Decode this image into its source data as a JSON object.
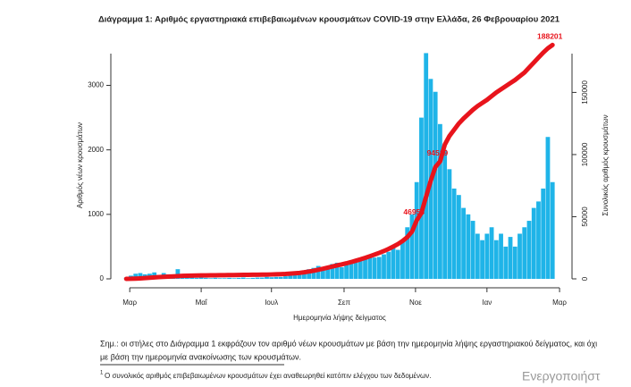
{
  "chart_data": {
    "type": "bar_line",
    "title": "Διάγραμμα 1: Αριθμός εργαστηριακά επιβεβαιωμένων κρουσμάτων COVID-19 στην Ελλάδα, 26 Φεβρουαρίου 2021",
    "y_label": "Αριθμός νέων κρουσμάτων",
    "y2_label": "Συνολικός αριθμός κρουσμάτων",
    "x_label": "Ημερομηνία λήψης δείγματος",
    "x": [
      2,
      6,
      10,
      14,
      18,
      22,
      26,
      30,
      34,
      38,
      42,
      46,
      50,
      54,
      58,
      62,
      66,
      70,
      74,
      78,
      82,
      86,
      90,
      94,
      98,
      102,
      106,
      110,
      114,
      118,
      122,
      126,
      130,
      134,
      138,
      142,
      146,
      150,
      154,
      158,
      162,
      166,
      170,
      174,
      178,
      182,
      186,
      190,
      194,
      198,
      202,
      206,
      210,
      214,
      218,
      222,
      226,
      230,
      234,
      238,
      242,
      246,
      250,
      254,
      258,
      262,
      266,
      270,
      274,
      278,
      282,
      286,
      290,
      294,
      298,
      302,
      306,
      310,
      314,
      318,
      322,
      326,
      330,
      334,
      338,
      342,
      346,
      350,
      354,
      358,
      362,
      366
    ],
    "xlim": [
      -2,
      375
    ],
    "xticks": [
      {
        "value": 5,
        "label": "Μαρ"
      },
      {
        "value": 66,
        "label": "Μαΐ"
      },
      {
        "value": 126,
        "label": "Ιουλ"
      },
      {
        "value": 188,
        "label": "Σεπ"
      },
      {
        "value": 249,
        "label": "Νοε"
      },
      {
        "value": 310,
        "label": "Ιαν"
      },
      {
        "value": 372,
        "label": "Μαρ"
      }
    ],
    "ylim": [
      0,
      3700
    ],
    "yticks": [
      0,
      1000,
      2000,
      3000
    ],
    "y2lim": [
      0,
      192000
    ],
    "y2ticks": [
      0,
      50000,
      100000,
      150000
    ],
    "series": [
      {
        "name": "Νέα κρούσματα",
        "color": "#1fb4e8",
        "values": [
          20,
          50,
          80,
          90,
          70,
          80,
          100,
          60,
          90,
          70,
          60,
          150,
          50,
          30,
          20,
          15,
          20,
          15,
          10,
          15,
          10,
          10,
          15,
          10,
          15,
          20,
          10,
          15,
          20,
          20,
          30,
          25,
          30,
          30,
          40,
          50,
          60,
          80,
          120,
          150,
          170,
          200,
          180,
          200,
          230,
          250,
          180,
          240,
          250,
          300,
          280,
          310,
          350,
          330,
          340,
          380,
          420,
          500,
          450,
          600,
          800,
          1000,
          1500,
          2500,
          3500,
          3100,
          2900,
          2400,
          2000,
          1700,
          1400,
          1300,
          1100,
          1000,
          900,
          700,
          600,
          700,
          800,
          600,
          700,
          500,
          650,
          500,
          700,
          800,
          900,
          1100,
          1200,
          1400,
          2200,
          1500
        ]
      },
      {
        "name": "Συνολικά κρούσματα",
        "color": "#e8141c",
        "axis": "y2",
        "values": [
          10,
          50,
          200,
          400,
          600,
          900,
          1200,
          1400,
          1600,
          1800,
          2000,
          2200,
          2400,
          2550,
          2650,
          2700,
          2750,
          2800,
          2850,
          2900,
          2950,
          3000,
          3050,
          3100,
          3150,
          3200,
          3250,
          3300,
          3350,
          3400,
          3450,
          3550,
          3650,
          3800,
          3950,
          4200,
          4500,
          4800,
          5300,
          5900,
          6500,
          7300,
          8100,
          9000,
          9900,
          10800,
          11600,
          12500,
          13500,
          14600,
          15700,
          16900,
          18200,
          19500,
          20900,
          22400,
          24100,
          26000,
          28000,
          30500,
          33600,
          38000,
          46953,
          53000,
          66000,
          79000,
          90000,
          94519,
          108000,
          115000,
          120000,
          125000,
          129000,
          132500,
          136000,
          139000,
          141500,
          144000,
          147000,
          150000,
          152500,
          155000,
          157500,
          160000,
          163000,
          166000,
          170000,
          174000,
          178000,
          182000,
          185500,
          188201
        ],
        "value_labels": [
          null,
          null,
          null,
          null,
          null,
          null,
          null,
          null,
          null,
          null,
          null,
          null,
          null,
          null,
          null,
          null,
          null,
          null,
          null,
          null,
          null,
          null,
          null,
          null,
          null,
          null,
          null,
          null,
          null,
          null,
          null,
          null,
          null,
          null,
          null,
          null,
          null,
          null,
          null,
          null,
          null,
          null,
          null,
          null,
          null,
          null,
          null,
          null,
          null,
          null,
          null,
          null,
          null,
          null,
          null,
          null,
          null,
          null,
          null,
          null,
          null,
          null,
          "46953",
          null,
          null,
          null,
          null,
          "94519",
          null,
          null,
          null,
          null,
          null,
          null,
          null,
          null,
          null,
          null,
          null,
          null,
          null,
          null,
          null,
          null,
          null,
          null,
          null,
          null,
          null,
          null,
          null,
          "188201"
        ]
      }
    ]
  },
  "note": [
    "Σημ.: οι στήλες στο Διάγραμμα 1 εκφράζουν τον αριθμό νέων κρουσμάτων με βάση την ημερομηνία λήψης εργαστηριακού δείγματος, και όχι",
    "με βάση την ημερομηνία ανακοίνωσης των κρουσμάτων."
  ],
  "footnote": {
    "marker": "1",
    "text": "Ο συνολικός αριθμός επιβεβαιωμένων κρουσμάτων έχει αναθεωρηθεί κατόπιν ελέγχου των δεδομένων."
  },
  "watermark": "Ενεργοποιήστ"
}
